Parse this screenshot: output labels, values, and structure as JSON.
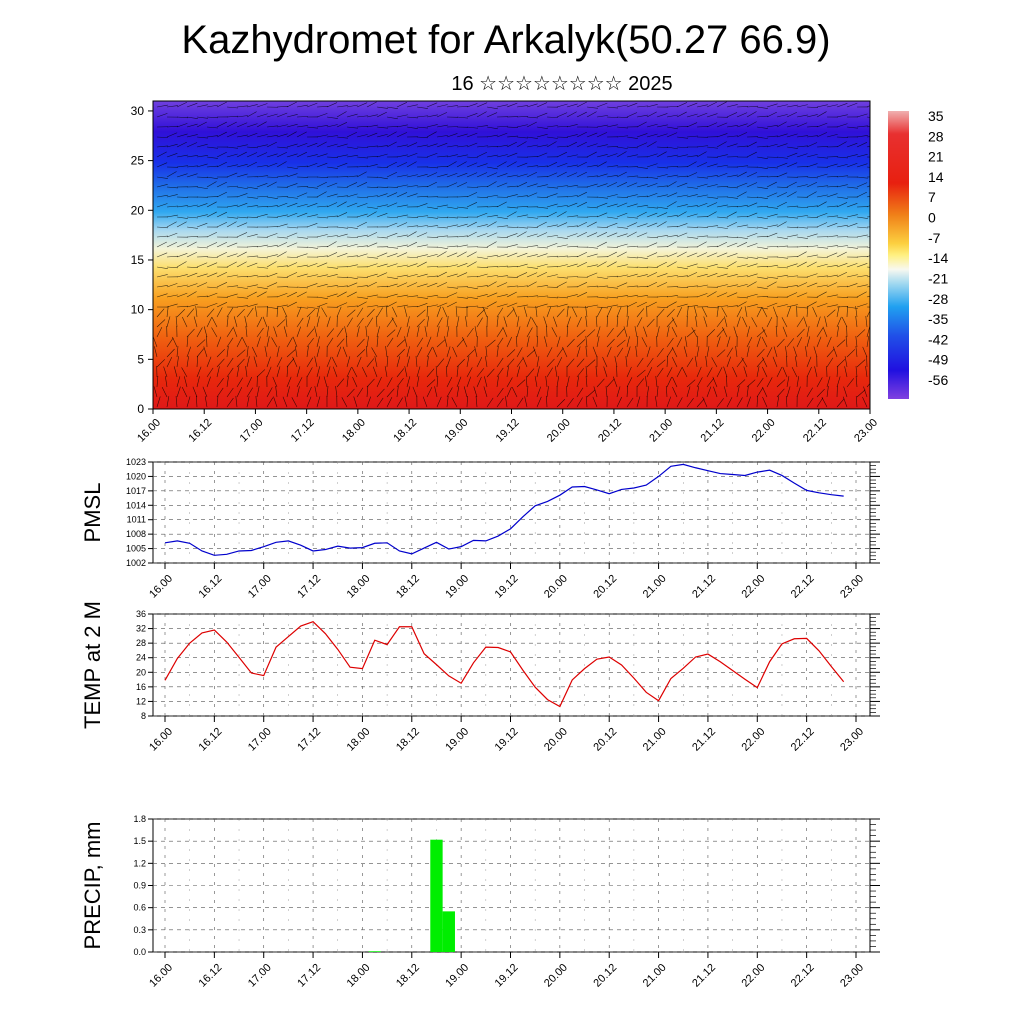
{
  "header": {
    "title": "Kazhydromet for Arkalyk(50.27 66.9)",
    "subtitle": "16 ☆☆☆☆☆☆☆☆ 2025"
  },
  "x_axis_ticks": [
    "16.00",
    "16.12",
    "17.00",
    "17.12",
    "18.00",
    "18.12",
    "19.00",
    "19.12",
    "20.00",
    "20.12",
    "21.00",
    "21.12",
    "22.00",
    "22.12",
    "23.00"
  ],
  "colorbar": {
    "labels": [
      "35",
      "28",
      "21",
      "14",
      "7",
      "0",
      "-7",
      "-14",
      "-21",
      "-28",
      "-35",
      "-42",
      "-49",
      "-56"
    ]
  },
  "chart_data": [
    {
      "type": "heatmap",
      "title": "",
      "xlabel": "",
      "ylabel": "",
      "ylim": [
        0,
        31
      ],
      "yticks": [
        "0",
        "5",
        "10",
        "15",
        "20",
        "25",
        "30"
      ],
      "description_of_field": "temperature cross-section with wind barbs",
      "levels": [
        0,
        5,
        10,
        15,
        20,
        25,
        30
      ],
      "approx_temperature_by_level": [
        28,
        24,
        16,
        2,
        -20,
        -50,
        -56
      ]
    },
    {
      "type": "line",
      "ylabel": "PMSL",
      "ylim": [
        1002,
        1023
      ],
      "yticks": [
        "1002",
        "1005",
        "1008",
        "1011",
        "1014",
        "1017",
        "1020",
        "1023"
      ],
      "color": "#0000cc",
      "x_hours": [
        0,
        3,
        6,
        9,
        12,
        15,
        18,
        21,
        24,
        27,
        30,
        33,
        36,
        39,
        42,
        45,
        48,
        51,
        54,
        57,
        60,
        63,
        66,
        69,
        72,
        75,
        78,
        81,
        84,
        87,
        90,
        93,
        96,
        99,
        102,
        105,
        108,
        111,
        114,
        117,
        120,
        123,
        126,
        129,
        132,
        135,
        138,
        141,
        144,
        147,
        150,
        153,
        156,
        159,
        162,
        165
      ],
      "values": [
        1006.2,
        1006.6,
        1006.1,
        1004.5,
        1003.6,
        1003.8,
        1004.5,
        1004.6,
        1005.4,
        1006.3,
        1006.6,
        1005.7,
        1004.5,
        1004.8,
        1005.5,
        1005.1,
        1005.2,
        1006.1,
        1006.2,
        1004.5,
        1003.9,
        1005.1,
        1006.3,
        1004.9,
        1005.4,
        1006.7,
        1006.6,
        1007.6,
        1009.1,
        1011.6,
        1013.9,
        1014.8,
        1016.1,
        1017.8,
        1017.9,
        1017.2,
        1016.4,
        1017.3,
        1017.6,
        1018.2,
        1020.0,
        1022.1,
        1022.5,
        1021.8,
        1021.2,
        1020.6,
        1020.4,
        1020.2,
        1020.9,
        1021.3,
        1020.2,
        1018.6,
        1017.1,
        1016.6,
        1016.2,
        1015.9
      ]
    },
    {
      "type": "line",
      "ylabel": "TEMP at 2 M",
      "ylim": [
        8,
        36
      ],
      "yticks": [
        "8",
        "12",
        "16",
        "20",
        "24",
        "28",
        "32",
        "36"
      ],
      "color": "#dd0000",
      "x_hours": [
        0,
        3,
        6,
        9,
        12,
        15,
        18,
        21,
        24,
        27,
        30,
        33,
        36,
        39,
        42,
        45,
        48,
        51,
        54,
        57,
        60,
        63,
        66,
        69,
        72,
        75,
        78,
        81,
        84,
        87,
        90,
        93,
        96,
        99,
        102,
        105,
        108,
        111,
        114,
        117,
        120,
        123,
        126,
        129,
        132,
        135,
        138,
        141,
        144,
        147,
        150,
        153,
        156,
        159,
        162,
        165
      ],
      "values": [
        17.8,
        23.8,
        28.0,
        30.8,
        31.6,
        28.3,
        24.1,
        19.8,
        19.1,
        26.9,
        29.8,
        32.7,
        33.9,
        30.6,
        26.3,
        21.4,
        21.0,
        28.8,
        27.6,
        32.5,
        32.5,
        25.1,
        22.1,
        19.0,
        17.0,
        22.6,
        26.9,
        26.8,
        25.6,
        20.6,
        15.9,
        12.5,
        10.6,
        17.9,
        21.0,
        23.6,
        24.2,
        22.0,
        18.4,
        14.5,
        12.2,
        18.3,
        21.1,
        24.2,
        25.0,
        22.9,
        20.5,
        18.1,
        15.8,
        22.9,
        27.8,
        29.2,
        29.3,
        25.9,
        21.6,
        17.4
      ]
    },
    {
      "type": "bar",
      "ylabel": "PRECIP, mm",
      "ylim": [
        0,
        1.8
      ],
      "yticks": [
        "0.0",
        "0.3",
        "0.6",
        "0.9",
        "1.2",
        "1.5",
        "1.8"
      ],
      "color": "#00ee00",
      "bars": [
        {
          "x_hours": 51,
          "value": 0.01
        },
        {
          "x_hours": 66,
          "value": 1.52
        },
        {
          "x_hours": 69,
          "value": 0.55
        }
      ]
    }
  ]
}
